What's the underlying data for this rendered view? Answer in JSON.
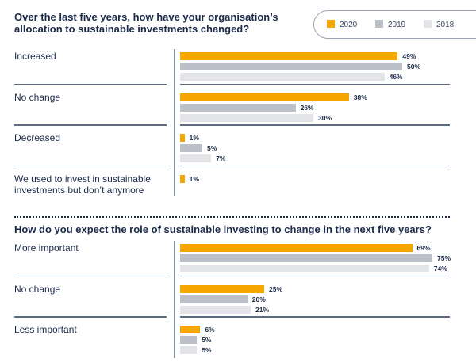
{
  "colors": {
    "2020": "#f7a600",
    "2019": "#bcc0c9",
    "2018": "#e3e4e8"
  },
  "legend": [
    "2020",
    "2019",
    "2018"
  ],
  "chart_data": [
    {
      "type": "bar",
      "orientation": "horizontal",
      "title": "Over the last five years, how have your organisation’s allocation to sustainable investments changed?",
      "categories": [
        "Increased",
        "No change",
        "Decreased",
        "We used to invest in sustainable investments but don’t anymore"
      ],
      "series": [
        {
          "name": "2020",
          "values": [
            49,
            38,
            1,
            1
          ]
        },
        {
          "name": "2019",
          "values": [
            50,
            26,
            5,
            null
          ]
        },
        {
          "name": "2018",
          "values": [
            46,
            30,
            7,
            null
          ]
        }
      ],
      "unit": "%"
    },
    {
      "type": "bar",
      "orientation": "horizontal",
      "title": "How do you expect the role of sustainable investing to change in the next five years?",
      "categories": [
        "More important",
        "No change",
        "Less important"
      ],
      "series": [
        {
          "name": "2020",
          "values": [
            69,
            25,
            6
          ]
        },
        {
          "name": "2019",
          "values": [
            75,
            20,
            5
          ]
        },
        {
          "name": "2018",
          "values": [
            74,
            21,
            5
          ]
        }
      ],
      "unit": "%"
    }
  ]
}
